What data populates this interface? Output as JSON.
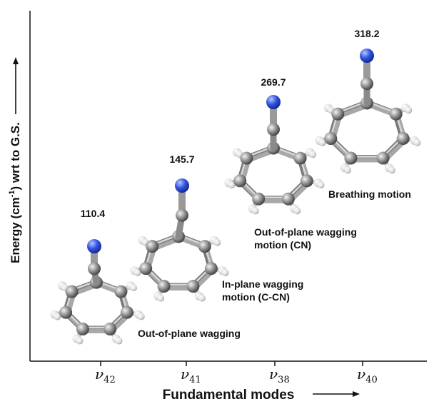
{
  "chart_data": {
    "type": "scatter",
    "xlabel": "Fundamental modes",
    "ylabel_parts": {
      "pre": "Energy (cm",
      "sup": "-1",
      "post": ") wrt to G.S."
    },
    "categories": [
      {
        "base": "ν",
        "sub": "42"
      },
      {
        "base": "ν",
        "sub": "41"
      },
      {
        "base": "ν",
        "sub": "38"
      },
      {
        "base": "ν",
        "sub": "40"
      }
    ],
    "values": [
      110.4,
      145.7,
      269.7,
      318.2
    ],
    "value_labels": [
      "110.4",
      "145.7",
      "269.7",
      "318.2"
    ],
    "annotations": [
      [
        "Out-of-plane wagging"
      ],
      [
        "In-plane wagging",
        "motion (C-CN)"
      ],
      [
        "Out-of-plane wagging",
        "motion (CN)"
      ],
      [
        "Breathing motion"
      ]
    ],
    "ylim": [
      0,
      350
    ],
    "grid": false
  },
  "colors": {
    "axis": "#111111",
    "carbon": "#8a8a8a",
    "hydrogen": "#e6e6e6",
    "nitrogen": "#2f4fd8"
  }
}
